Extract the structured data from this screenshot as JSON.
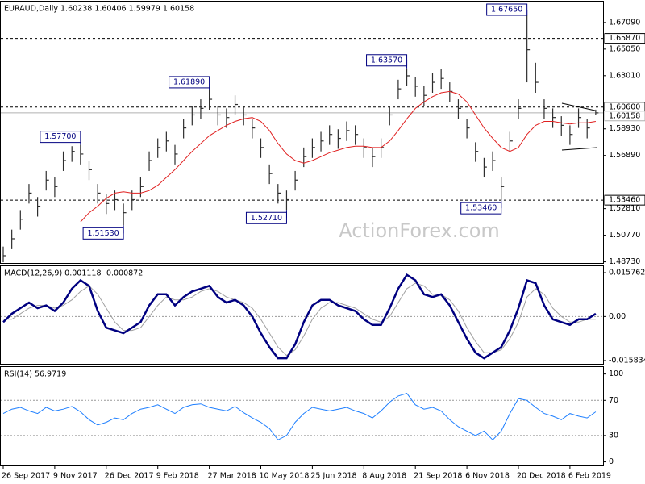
{
  "chart_data": [
    {
      "type": "ohlc",
      "title": "EURAUD,Daily  1.60238 1.60406 1.59979 1.60158",
      "watermark": "ActionForex.com",
      "color": "#2e2e2e",
      "ylim": [
        1.4858,
        1.6863
      ],
      "yticks": [
        {
          "value": 1.6709,
          "label": "1.67090"
        },
        {
          "value": 1.6505,
          "label": "1.65050"
        },
        {
          "value": 1.6301,
          "label": "1.63010"
        },
        {
          "value": 1.5893,
          "label": "1.58930"
        },
        {
          "value": 1.5689,
          "label": "1.56890"
        },
        {
          "value": 1.5281,
          "label": "1.52810"
        },
        {
          "value": 1.5077,
          "label": "1.50770"
        },
        {
          "value": 1.4873,
          "label": "1.48730"
        }
      ],
      "high": [
        1.499,
        1.512,
        1.527,
        1.547,
        1.537,
        1.557,
        1.552,
        1.572,
        1.576,
        1.577,
        1.565,
        1.547,
        1.539,
        1.542,
        1.532,
        1.542,
        1.552,
        1.572,
        1.582,
        1.587,
        1.577,
        1.597,
        1.607,
        1.612,
        1.6189,
        1.607,
        1.605,
        1.615,
        1.607,
        1.597,
        1.582,
        1.562,
        1.547,
        1.542,
        1.557,
        1.575,
        1.582,
        1.587,
        1.592,
        1.589,
        1.595,
        1.592,
        1.582,
        1.575,
        1.582,
        1.607,
        1.627,
        1.6357,
        1.629,
        1.622,
        1.632,
        1.635,
        1.625,
        1.612,
        1.597,
        1.579,
        1.567,
        1.572,
        1.552,
        1.587,
        1.612,
        1.6765,
        1.64,
        1.612,
        1.605,
        1.599,
        1.592,
        1.605,
        1.597,
        1.60406
      ],
      "low": [
        1.487,
        1.497,
        1.512,
        1.532,
        1.522,
        1.542,
        1.537,
        1.557,
        1.564,
        1.562,
        1.55,
        1.532,
        1.524,
        1.527,
        1.5153,
        1.527,
        1.537,
        1.557,
        1.567,
        1.572,
        1.562,
        1.582,
        1.592,
        1.597,
        1.604,
        1.592,
        1.59,
        1.6,
        1.592,
        1.582,
        1.567,
        1.547,
        1.532,
        1.5271,
        1.542,
        1.56,
        1.567,
        1.572,
        1.577,
        1.574,
        1.58,
        1.577,
        1.567,
        1.56,
        1.567,
        1.592,
        1.612,
        1.622,
        1.614,
        1.607,
        1.617,
        1.62,
        1.61,
        1.597,
        1.582,
        1.564,
        1.552,
        1.557,
        1.5346,
        1.572,
        1.597,
        1.625,
        1.617,
        1.597,
        1.59,
        1.584,
        1.577,
        1.59,
        1.582,
        1.59979
      ],
      "close": [
        1.492,
        1.505,
        1.52,
        1.54,
        1.53,
        1.55,
        1.545,
        1.565,
        1.572,
        1.57,
        1.558,
        1.54,
        1.532,
        1.535,
        1.525,
        1.535,
        1.545,
        1.565,
        1.575,
        1.58,
        1.57,
        1.59,
        1.6,
        1.605,
        1.612,
        1.6,
        1.598,
        1.608,
        1.6,
        1.59,
        1.575,
        1.555,
        1.54,
        1.535,
        1.55,
        1.568,
        1.575,
        1.58,
        1.585,
        1.582,
        1.588,
        1.585,
        1.575,
        1.568,
        1.575,
        1.6,
        1.62,
        1.63,
        1.622,
        1.615,
        1.625,
        1.628,
        1.618,
        1.605,
        1.59,
        1.572,
        1.56,
        1.565,
        1.545,
        1.58,
        1.605,
        1.65,
        1.625,
        1.605,
        1.598,
        1.592,
        1.585,
        1.598,
        1.59,
        1.60158
      ],
      "ma": {
        "color": "#e02020",
        "values": [
          null,
          null,
          null,
          null,
          null,
          null,
          null,
          null,
          null,
          1.518,
          1.525,
          1.53,
          1.536,
          1.54,
          1.541,
          1.54,
          1.54,
          1.542,
          1.546,
          1.552,
          1.558,
          1.565,
          1.572,
          1.578,
          1.584,
          1.588,
          1.592,
          1.595,
          1.597,
          1.598,
          1.595,
          1.588,
          1.578,
          1.57,
          1.565,
          1.563,
          1.565,
          1.568,
          1.571,
          1.573,
          1.575,
          1.576,
          1.576,
          1.575,
          1.575,
          1.58,
          1.588,
          1.597,
          1.605,
          1.61,
          1.614,
          1.617,
          1.618,
          1.616,
          1.61,
          1.6,
          1.59,
          1.582,
          1.575,
          1.572,
          1.575,
          1.585,
          1.592,
          1.595,
          1.595,
          1.594,
          1.593,
          1.594,
          1.594,
          1.595
        ]
      },
      "levels": [
        {
          "value": 1.6587,
          "label": "1.65870",
          "style": "dashed"
        },
        {
          "value": 1.606,
          "label": "1.60600",
          "style": "dashed"
        },
        {
          "value": 1.60158,
          "label": "1.60158",
          "style": "solid"
        },
        {
          "value": 1.5346,
          "label": "1.53460",
          "style": "dashed"
        }
      ],
      "annotations": [
        {
          "label": "1.67650",
          "value": 1.6765,
          "x": 61
        },
        {
          "label": "1.63570",
          "value": 1.6357,
          "x": 47
        },
        {
          "label": "1.61890",
          "value": 1.6189,
          "x": 24
        },
        {
          "label": "1.57700",
          "value": 1.577,
          "x": 9
        },
        {
          "label": "1.51530",
          "value": 1.5153,
          "x": 14
        },
        {
          "label": "1.52710",
          "value": 1.5271,
          "x": 33
        },
        {
          "label": "1.53460",
          "value": 1.5346,
          "x": 58
        }
      ]
    },
    {
      "type": "macd",
      "title": "MACD(12,26,9) 0.001118 -0.000872",
      "ylim": [
        -0.0173,
        0.0178
      ],
      "yticks": [
        0.015762,
        {
          "value": 0,
          "label": "0.00"
        },
        -0.015834
      ],
      "levels": [
        0
      ],
      "series": [
        {
          "color": "#000080",
          "values": [
            -0.002,
            0.001,
            0.003,
            0.005,
            0.003,
            0.004,
            0.002,
            0.005,
            0.01,
            0.013,
            0.011,
            0.002,
            -0.004,
            -0.005,
            -0.006,
            -0.004,
            -0.002,
            0.004,
            0.008,
            0.008,
            0.004,
            0.007,
            0.009,
            0.01,
            0.011,
            0.007,
            0.005,
            0.006,
            0.004,
            0.0,
            -0.006,
            -0.011,
            -0.015,
            -0.015,
            -0.01,
            -0.002,
            0.004,
            0.006,
            0.006,
            0.004,
            0.003,
            0.002,
            -0.001,
            -0.003,
            -0.003,
            0.003,
            0.01,
            0.015,
            0.013,
            0.008,
            0.007,
            0.008,
            0.004,
            -0.002,
            -0.008,
            -0.013,
            -0.015,
            -0.013,
            -0.011,
            -0.005,
            0.003,
            0.013,
            0.012,
            0.004,
            -0.001,
            -0.002,
            -0.003,
            -0.001,
            -0.001,
            0.001
          ]
        },
        {
          "color": "#a0a0a0",
          "values": [
            -0.001,
            -0.001,
            0.001,
            0.003,
            0.004,
            0.004,
            0.003,
            0.004,
            0.006,
            0.009,
            0.011,
            0.008,
            0.003,
            -0.002,
            -0.005,
            -0.005,
            -0.004,
            0.0,
            0.004,
            0.007,
            0.006,
            0.006,
            0.007,
            0.009,
            0.01,
            0.009,
            0.007,
            0.006,
            0.005,
            0.003,
            -0.001,
            -0.006,
            -0.011,
            -0.014,
            -0.012,
            -0.007,
            -0.001,
            0.003,
            0.005,
            0.005,
            0.004,
            0.003,
            0.001,
            -0.001,
            -0.002,
            0.0,
            0.005,
            0.01,
            0.012,
            0.011,
            0.008,
            0.008,
            0.006,
            0.002,
            -0.004,
            -0.009,
            -0.013,
            -0.013,
            -0.012,
            -0.008,
            -0.002,
            0.007,
            0.01,
            0.008,
            0.003,
            0.0,
            -0.002,
            -0.002,
            -0.001,
            -0.001
          ]
        }
      ]
    },
    {
      "type": "line",
      "title": "RSI(14) 56.9719",
      "color": "#1e7fff",
      "ylim": [
        -5,
        107
      ],
      "yticks": [
        100,
        70,
        30,
        0
      ],
      "levels": [
        70,
        30
      ],
      "values": [
        55,
        60,
        62,
        58,
        55,
        62,
        58,
        60,
        63,
        57,
        48,
        42,
        45,
        50,
        48,
        55,
        60,
        62,
        65,
        60,
        55,
        62,
        65,
        66,
        62,
        60,
        58,
        63,
        56,
        50,
        45,
        38,
        25,
        30,
        45,
        55,
        62,
        60,
        58,
        60,
        62,
        58,
        55,
        50,
        58,
        68,
        75,
        78,
        65,
        60,
        62,
        58,
        48,
        40,
        35,
        30,
        35,
        25,
        35,
        55,
        72,
        70,
        62,
        55,
        52,
        48,
        55,
        52,
        50,
        57
      ],
      "categories": [
        "26 Sep 2017",
        null,
        null,
        null,
        null,
        null,
        "9 Nov 2017",
        null,
        null,
        null,
        null,
        null,
        "26 Dec 2017",
        null,
        null,
        null,
        null,
        null,
        "9 Feb 2018",
        null,
        null,
        null,
        null,
        null,
        "27 Mar 2018",
        null,
        null,
        null,
        null,
        null,
        "10 May 2018",
        null,
        null,
        null,
        null,
        null,
        "25 Jun 2018",
        null,
        null,
        null,
        null,
        null,
        "8 Aug 2018",
        null,
        null,
        null,
        null,
        null,
        "21 Sep 2018",
        null,
        null,
        null,
        null,
        null,
        "6 Nov 2018",
        null,
        null,
        null,
        null,
        null,
        "20 Dec 2018",
        null,
        null,
        null,
        null,
        null,
        "6 Feb 2019",
        null,
        null,
        null
      ]
    }
  ]
}
